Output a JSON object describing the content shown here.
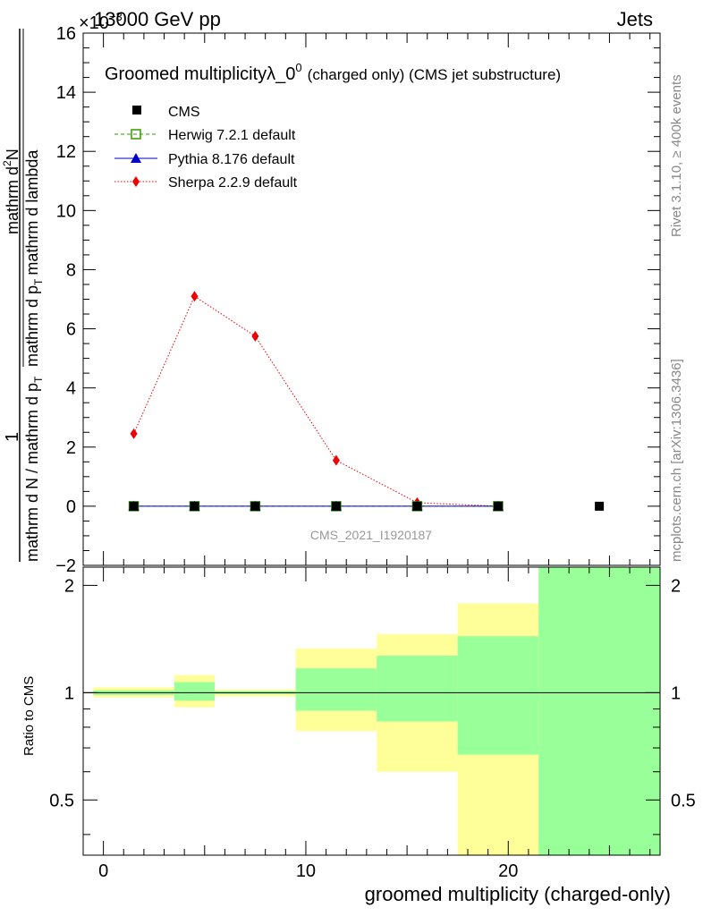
{
  "header": {
    "energy_label": "13000 GeV pp",
    "process_label": "Jets",
    "exponent_label": "×10",
    "exponent_power": "−3"
  },
  "side_labels": {
    "rivet": "Rivet 3.1.10, ≥ 400k events",
    "mcplots": "mcplots.cern.ch [arXiv:1306.3436]"
  },
  "colors": {
    "cms": "#000000",
    "herwig": "#339900",
    "pythia": "#0000cc",
    "sherpa": "#ee0000",
    "band_yellow": "#ffff99",
    "band_green": "#99ff99"
  },
  "chart_data": [
    {
      "type": "line",
      "title_main": "Groomed multiplicity",
      "title_lambda": "λ_0",
      "title_sup": "0",
      "title_suffix": "(charged only) (CMS jet substructure)",
      "watermark": "CMS_2021_I1920187",
      "ylabel_numerator": "1",
      "ylabel_denominator": "mathrm d N / mathrm d p",
      "ylabel_denominator_tail": "mathrm d p",
      "ylabel_T": "T",
      "ylabel_upper": "mathrm d",
      "ylabel_upper_sup": "2",
      "ylabel_upper_N": "N",
      "ylabel_upper_tail": "mathrm d lambda",
      "ylim": [
        -2,
        16
      ],
      "yticks": [
        -2,
        0,
        2,
        4,
        6,
        8,
        10,
        12,
        14,
        16
      ],
      "xlim": [
        -1,
        27.5
      ],
      "series": [
        {
          "name": "CMS",
          "x": [
            1.5,
            4.5,
            7.5,
            11.5,
            15.5,
            19.5,
            24.5
          ],
          "values": [
            0,
            0,
            0,
            0,
            0,
            0,
            0
          ]
        },
        {
          "name": "Herwig 7.2.1 default",
          "x": [
            1.5,
            4.5,
            7.5,
            11.5,
            15.5,
            19.5
          ],
          "values": [
            0,
            0,
            0,
            0,
            0,
            0
          ]
        },
        {
          "name": "Pythia 8.176 default",
          "x": [
            1.5,
            4.5,
            7.5,
            11.5,
            15.5,
            19.5
          ],
          "values": [
            0,
            0,
            0,
            0,
            0,
            0
          ]
        },
        {
          "name": "Sherpa 2.2.9 default",
          "x": [
            1.5,
            4.5,
            7.5,
            11.5,
            15.5,
            19.5
          ],
          "values": [
            2.45,
            7.1,
            5.75,
            1.55,
            0.12,
            0.0
          ]
        }
      ]
    },
    {
      "type": "area",
      "ylabel": "Ratio to CMS",
      "xlabel": "groomed multiplicity (charged-only)",
      "xlim": [
        -1,
        27.5
      ],
      "xticks": [
        0,
        10,
        20
      ],
      "ylim": [
        0.35,
        2.25
      ],
      "yticks": [
        0.5,
        1,
        2
      ],
      "yticklabels": [
        "0.5",
        "1",
        "2"
      ],
      "bins": [
        {
          "lo": -0.5,
          "hi": 3.5,
          "yellow": [
            0.97,
            1.035
          ],
          "green": [
            0.985,
            1.015
          ]
        },
        {
          "lo": 3.5,
          "hi": 5.5,
          "yellow": [
            0.91,
            1.12
          ],
          "green": [
            0.95,
            1.07
          ]
        },
        {
          "lo": 5.5,
          "hi": 9.5,
          "yellow": [
            0.975,
            1.02
          ],
          "green": [
            0.99,
            1.01
          ]
        },
        {
          "lo": 9.5,
          "hi": 13.5,
          "yellow": [
            0.78,
            1.33
          ],
          "green": [
            0.89,
            1.17
          ]
        },
        {
          "lo": 13.5,
          "hi": 17.5,
          "yellow": [
            0.6,
            1.46
          ],
          "green": [
            0.83,
            1.27
          ]
        },
        {
          "lo": 17.5,
          "hi": 21.5,
          "yellow": [
            0.35,
            1.78
          ],
          "green": [
            0.67,
            1.44
          ]
        },
        {
          "lo": 21.5,
          "hi": 27.5,
          "yellow": [
            0.35,
            2.25
          ],
          "green": [
            0.35,
            2.25
          ]
        }
      ],
      "reference": 1
    }
  ]
}
